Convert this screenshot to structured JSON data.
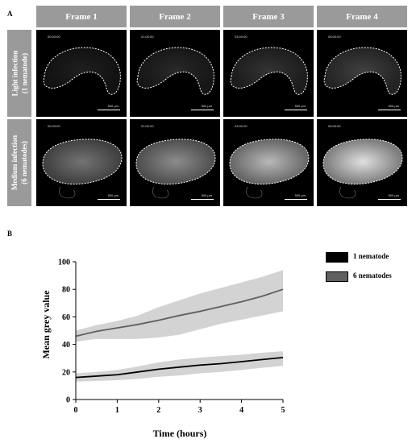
{
  "panel_a": {
    "letter": "A",
    "frames": [
      "Frame 1",
      "Frame 2",
      "Frame 3",
      "Frame 4"
    ],
    "rows": [
      {
        "label_line1": "Light infection",
        "label_line2": "(1 nematode)",
        "timestamps": [
          "00:00:00",
          "01:00:00",
          "03:00:00",
          "05:00:00"
        ],
        "brightness": [
          0.12,
          0.16,
          0.2,
          0.25
        ]
      },
      {
        "label_line1": "Medium infection",
        "label_line2": "(6 nematodes)",
        "timestamps": [
          "00:00:00",
          "01:00:00",
          "03:00:00",
          "05:00:00"
        ],
        "brightness": [
          0.45,
          0.55,
          0.72,
          0.88
        ]
      }
    ],
    "scale_bar": "500 µm"
  },
  "panel_b": {
    "letter": "B"
  },
  "chart_data": {
    "type": "line",
    "title": "",
    "xlabel": "Time (hours)",
    "ylabel": "Mean grey value",
    "xlim": [
      0,
      5
    ],
    "ylim": [
      0,
      100
    ],
    "xticks": [
      0,
      1,
      2,
      3,
      4,
      5
    ],
    "yticks": [
      0,
      20,
      40,
      60,
      80,
      100
    ],
    "legend_position": "top-right",
    "series": [
      {
        "name": "1 nematode",
        "color": "#000000",
        "band_color": "#d3d3d3",
        "x": [
          0,
          0.5,
          1,
          1.5,
          2,
          2.5,
          3,
          3.5,
          4,
          4.5,
          5
        ],
        "mean": [
          16,
          17,
          18,
          20,
          22,
          23.5,
          25,
          26,
          27.5,
          29,
          30.5
        ],
        "lower": [
          13,
          13.5,
          14,
          15,
          16.5,
          17.5,
          19,
          20,
          21.5,
          23,
          24.5
        ],
        "upper": [
          19,
          20,
          21.5,
          24,
          27,
          29,
          30.5,
          31.5,
          32.5,
          34,
          35
        ]
      },
      {
        "name": "6 nematodes",
        "color": "#606060",
        "band_color": "#d3d3d3",
        "x": [
          0,
          0.5,
          1,
          1.5,
          2,
          2.5,
          3,
          3.5,
          4,
          4.5,
          5
        ],
        "mean": [
          46,
          49.5,
          52,
          54.5,
          57.5,
          61,
          64,
          67.5,
          71,
          75,
          80
        ],
        "lower": [
          42,
          44,
          44,
          44,
          45,
          47,
          51,
          55,
          58,
          61,
          64
        ],
        "upper": [
          50,
          54,
          57,
          61,
          67,
          72,
          77,
          81,
          85,
          89,
          94
        ]
      }
    ]
  }
}
